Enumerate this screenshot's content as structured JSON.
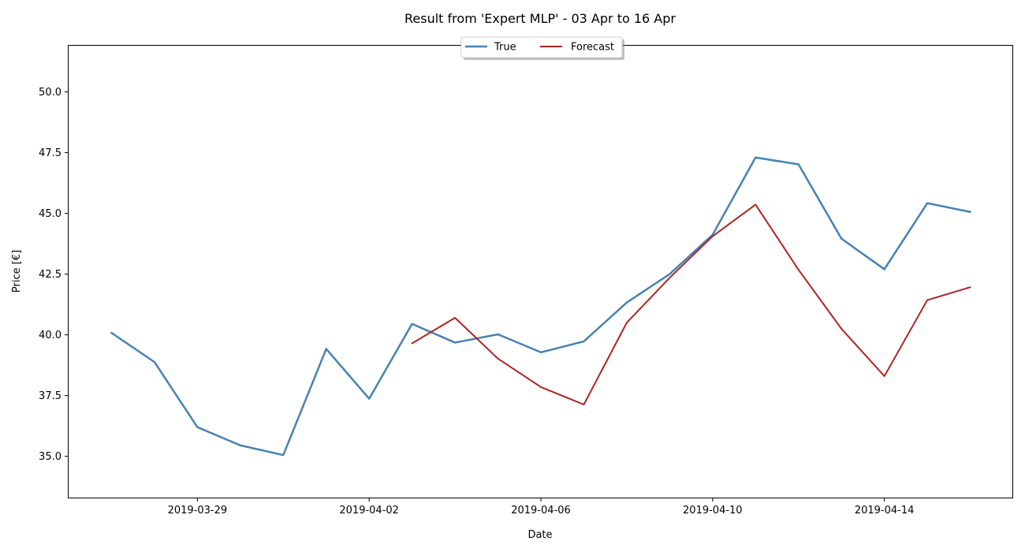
{
  "chart_data": {
    "type": "line",
    "title": "Result from 'Expert MLP' - 03 Apr to 16 Apr",
    "xlabel": "Date",
    "ylabel": "Price [€]",
    "xlim": [
      "2019-03-26",
      "2019-04-17"
    ],
    "ylim": [
      33.3,
      51.9
    ],
    "x_ticks": [
      "2019-03-29",
      "2019-04-02",
      "2019-04-06",
      "2019-04-10",
      "2019-04-14"
    ],
    "y_ticks": [
      35.0,
      37.5,
      40.0,
      42.5,
      45.0,
      47.5,
      50.0
    ],
    "y_tick_labels": [
      "35.0",
      "37.5",
      "40.0",
      "42.5",
      "45.0",
      "47.5",
      "50.0"
    ],
    "grid": false,
    "legend": {
      "placement": "top-center",
      "columns": 2
    },
    "series": [
      {
        "name": "True",
        "color": "#4682b4",
        "points": [
          {
            "x": "2019-03-27",
            "y": 40.08
          },
          {
            "x": "2019-03-28",
            "y": 38.88
          },
          {
            "x": "2019-03-29",
            "y": 36.2
          },
          {
            "x": "2019-03-30",
            "y": 35.45
          },
          {
            "x": "2019-03-31",
            "y": 35.05
          },
          {
            "x": "2019-04-01",
            "y": 39.42
          },
          {
            "x": "2019-04-02",
            "y": 37.37
          },
          {
            "x": "2019-04-03",
            "y": 40.45
          },
          {
            "x": "2019-04-04",
            "y": 39.68
          },
          {
            "x": "2019-04-05",
            "y": 40.02
          },
          {
            "x": "2019-04-06",
            "y": 39.28
          },
          {
            "x": "2019-04-07",
            "y": 39.73
          },
          {
            "x": "2019-04-08",
            "y": 41.33
          },
          {
            "x": "2019-04-09",
            "y": 42.5
          },
          {
            "x": "2019-04-10",
            "y": 44.12
          },
          {
            "x": "2019-04-11",
            "y": 47.3
          },
          {
            "x": "2019-04-12",
            "y": 47.02
          },
          {
            "x": "2019-04-13",
            "y": 43.96
          },
          {
            "x": "2019-04-14",
            "y": 42.7
          },
          {
            "x": "2019-04-15",
            "y": 45.42
          },
          {
            "x": "2019-04-16",
            "y": 45.06
          }
        ]
      },
      {
        "name": "Forecast",
        "color": "#b22222",
        "points": [
          {
            "x": "2019-04-03",
            "y": 39.65
          },
          {
            "x": "2019-04-04",
            "y": 40.7
          },
          {
            "x": "2019-04-05",
            "y": 39.02
          },
          {
            "x": "2019-04-06",
            "y": 37.85
          },
          {
            "x": "2019-04-07",
            "y": 37.13
          },
          {
            "x": "2019-04-08",
            "y": 40.5
          },
          {
            "x": "2019-04-09",
            "y": 42.35
          },
          {
            "x": "2019-04-10",
            "y": 44.06
          },
          {
            "x": "2019-04-11",
            "y": 45.36
          },
          {
            "x": "2019-04-12",
            "y": 42.68
          },
          {
            "x": "2019-04-13",
            "y": 40.25
          },
          {
            "x": "2019-04-14",
            "y": 38.3
          },
          {
            "x": "2019-04-15",
            "y": 41.43
          },
          {
            "x": "2019-04-16",
            "y": 41.96
          }
        ]
      }
    ]
  }
}
